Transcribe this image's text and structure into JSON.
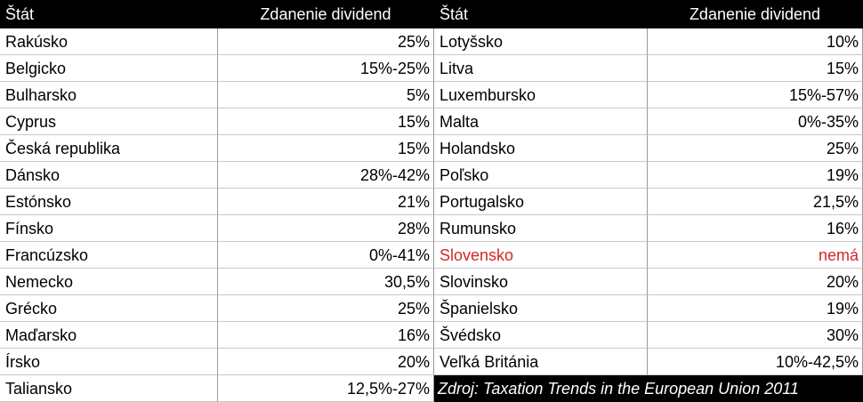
{
  "header": [
    "Štát",
    "Zdanenie dividend",
    "Štát",
    "Zdanenie dividend"
  ],
  "left_rows": [
    [
      "Rakúsko",
      "25%"
    ],
    [
      "Belgicko",
      "15%-25%"
    ],
    [
      "Bulharsko",
      "5%"
    ],
    [
      "Cyprus",
      "15%"
    ],
    [
      "Česká republika",
      "15%"
    ],
    [
      "Dánsko",
      "28%-42%"
    ],
    [
      "Estónsko",
      "21%"
    ],
    [
      "Fínsko",
      "28%"
    ],
    [
      "Francúzsko",
      "0%-41%"
    ],
    [
      "Nemecko",
      "30,5%"
    ],
    [
      "Grécko",
      "25%"
    ],
    [
      "Maďarsko",
      "16%"
    ],
    [
      "Írsko",
      "20%"
    ],
    [
      "Taliansko",
      "12,5%-27%"
    ]
  ],
  "right_rows": [
    [
      "Lotyšsko",
      "10%"
    ],
    [
      "Litva",
      "15%"
    ],
    [
      "Luxembursko",
      "15%-57%"
    ],
    [
      "Malta",
      "0%-35%"
    ],
    [
      "Holandsko",
      "25%"
    ],
    [
      "Poľsko",
      "19%"
    ],
    [
      "Portugalsko",
      "21,5%"
    ],
    [
      "Rumunsko",
      "16%"
    ],
    [
      "Slovensko",
      "nemá"
    ],
    [
      "Slovinsko",
      "20%"
    ],
    [
      "Španielsko",
      "19%"
    ],
    [
      "Švédsko",
      "30%"
    ],
    [
      "Veľká Británia",
      "10%-42,5%"
    ]
  ],
  "highlight": {
    "row": 8,
    "color": "#d0262b"
  },
  "source": "Zdroj: Taxation Trends in the European Union 2011"
}
